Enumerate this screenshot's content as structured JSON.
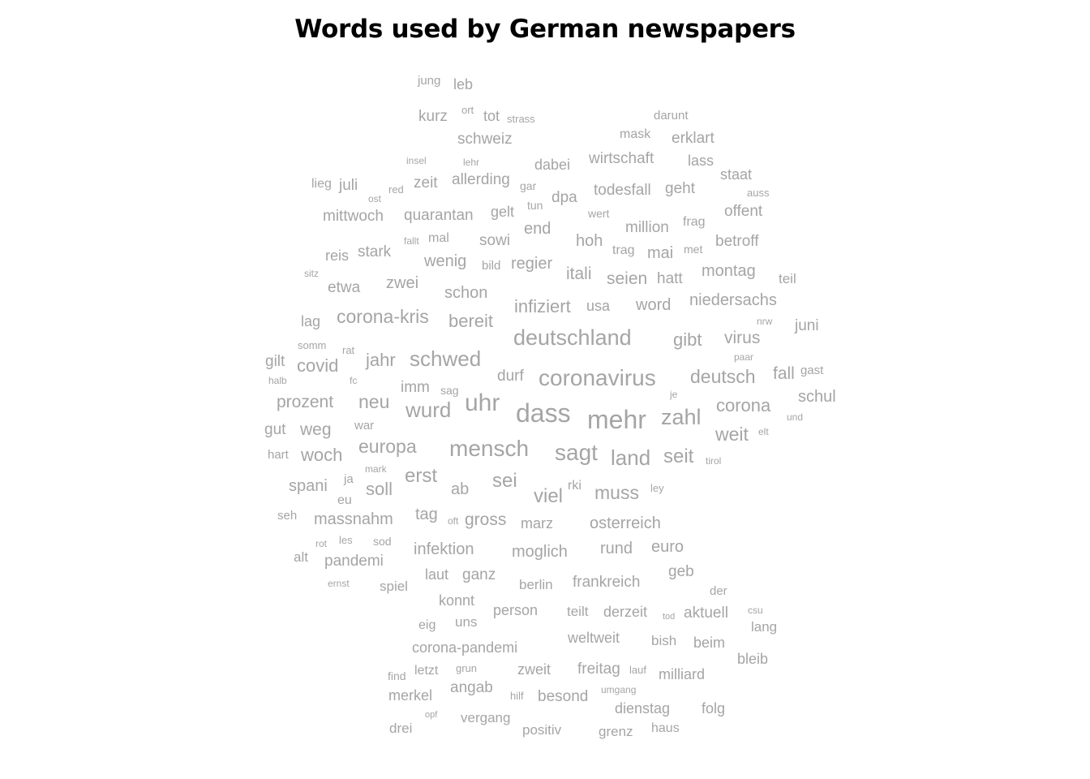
{
  "title": "Words used by German newspapers",
  "word_color": "#a5a5a5",
  "words": [
    {
      "text": "jung",
      "weight": 1
    },
    {
      "text": "leb",
      "weight": 2
    },
    {
      "text": "kurz",
      "weight": 2
    },
    {
      "text": "ort",
      "weight": 1
    },
    {
      "text": "tot",
      "weight": 2
    },
    {
      "text": "strass",
      "weight": 1
    },
    {
      "text": "darunt",
      "weight": 1
    },
    {
      "text": "schweiz",
      "weight": 2
    },
    {
      "text": "mask",
      "weight": 2
    },
    {
      "text": "erklart",
      "weight": 2
    },
    {
      "text": "insel",
      "weight": 1
    },
    {
      "text": "lehr",
      "weight": 1
    },
    {
      "text": "dabei",
      "weight": 2
    },
    {
      "text": "wirtschaft",
      "weight": 2
    },
    {
      "text": "lass",
      "weight": 2
    },
    {
      "text": "staat",
      "weight": 2
    },
    {
      "text": "lieg",
      "weight": 2
    },
    {
      "text": "juli",
      "weight": 2
    },
    {
      "text": "red",
      "weight": 1
    },
    {
      "text": "zeit",
      "weight": 2
    },
    {
      "text": "allerding",
      "weight": 2
    },
    {
      "text": "gar",
      "weight": 1
    },
    {
      "text": "todesfall",
      "weight": 2
    },
    {
      "text": "geht",
      "weight": 2
    },
    {
      "text": "auss",
      "weight": 1
    },
    {
      "text": "ost",
      "weight": 1
    },
    {
      "text": "dpa",
      "weight": 2
    },
    {
      "text": "tun",
      "weight": 1
    },
    {
      "text": "mittwoch",
      "weight": 2
    },
    {
      "text": "quarantan",
      "weight": 2
    },
    {
      "text": "gelt",
      "weight": 2
    },
    {
      "text": "wert",
      "weight": 1
    },
    {
      "text": "offent",
      "weight": 2
    },
    {
      "text": "end",
      "weight": 2
    },
    {
      "text": "million",
      "weight": 2
    },
    {
      "text": "frag",
      "weight": 2
    },
    {
      "text": "fallt",
      "weight": 1
    },
    {
      "text": "mal",
      "weight": 2
    },
    {
      "text": "sowi",
      "weight": 2
    },
    {
      "text": "hoh",
      "weight": 2
    },
    {
      "text": "betroff",
      "weight": 2
    },
    {
      "text": "stark",
      "weight": 2
    },
    {
      "text": "reis",
      "weight": 2
    },
    {
      "text": "trag",
      "weight": 2
    },
    {
      "text": "mai",
      "weight": 2
    },
    {
      "text": "met",
      "weight": 1
    },
    {
      "text": "wenig",
      "weight": 2
    },
    {
      "text": "bild",
      "weight": 1
    },
    {
      "text": "regier",
      "weight": 2
    },
    {
      "text": "itali",
      "weight": 2
    },
    {
      "text": "montag",
      "weight": 2
    },
    {
      "text": "sitz",
      "weight": 1
    },
    {
      "text": "zwei",
      "weight": 2
    },
    {
      "text": "seien",
      "weight": 2
    },
    {
      "text": "hatt",
      "weight": 2
    },
    {
      "text": "teil",
      "weight": 2
    },
    {
      "text": "etwa",
      "weight": 2
    },
    {
      "text": "schon",
      "weight": 2
    },
    {
      "text": "niedersachs",
      "weight": 2
    },
    {
      "text": "infiziert",
      "weight": 3
    },
    {
      "text": "usa",
      "weight": 2
    },
    {
      "text": "word",
      "weight": 2
    },
    {
      "text": "lag",
      "weight": 2
    },
    {
      "text": "corona-kris",
      "weight": 3
    },
    {
      "text": "bereit",
      "weight": 3
    },
    {
      "text": "nrw",
      "weight": 1
    },
    {
      "text": "juni",
      "weight": 2
    },
    {
      "text": "deutschland",
      "weight": 4
    },
    {
      "text": "gibt",
      "weight": 3
    },
    {
      "text": "virus",
      "weight": 3
    },
    {
      "text": "somm",
      "weight": 1
    },
    {
      "text": "rat",
      "weight": 1
    },
    {
      "text": "schwed",
      "weight": 4
    },
    {
      "text": "gilt",
      "weight": 2
    },
    {
      "text": "covid",
      "weight": 3
    },
    {
      "text": "jahr",
      "weight": 3
    },
    {
      "text": "paar",
      "weight": 1
    },
    {
      "text": "durf",
      "weight": 2
    },
    {
      "text": "coronavirus",
      "weight": 4
    },
    {
      "text": "deutsch",
      "weight": 3
    },
    {
      "text": "fall",
      "weight": 3
    },
    {
      "text": "gast",
      "weight": 1
    },
    {
      "text": "halb",
      "weight": 1
    },
    {
      "text": "fc",
      "weight": 1
    },
    {
      "text": "imm",
      "weight": 2
    },
    {
      "text": "sag",
      "weight": 1
    },
    {
      "text": "schul",
      "weight": 3
    },
    {
      "text": "je",
      "weight": 1
    },
    {
      "text": "prozent",
      "weight": 3
    },
    {
      "text": "neu",
      "weight": 3
    },
    {
      "text": "uhr",
      "weight": 5
    },
    {
      "text": "corona",
      "weight": 3
    },
    {
      "text": "wurd",
      "weight": 4
    },
    {
      "text": "dass",
      "weight": 5
    },
    {
      "text": "mehr",
      "weight": 5
    },
    {
      "text": "zahl",
      "weight": 4
    },
    {
      "text": "und",
      "weight": 1
    },
    {
      "text": "gut",
      "weight": 2
    },
    {
      "text": "weg",
      "weight": 3
    },
    {
      "text": "war",
      "weight": 2
    },
    {
      "text": "elt",
      "weight": 1
    },
    {
      "text": "weit",
      "weight": 3
    },
    {
      "text": "europa",
      "weight": 3
    },
    {
      "text": "mensch",
      "weight": 4
    },
    {
      "text": "hart",
      "weight": 2
    },
    {
      "text": "woch",
      "weight": 3
    },
    {
      "text": "sagt",
      "weight": 4
    },
    {
      "text": "land",
      "weight": 4
    },
    {
      "text": "seit",
      "weight": 3
    },
    {
      "text": "tirol",
      "weight": 1
    },
    {
      "text": "mark",
      "weight": 1
    },
    {
      "text": "ja",
      "weight": 1
    },
    {
      "text": "erst",
      "weight": 3
    },
    {
      "text": "spani",
      "weight": 3
    },
    {
      "text": "sei",
      "weight": 3
    },
    {
      "text": "rki",
      "weight": 2
    },
    {
      "text": "ab",
      "weight": 3
    },
    {
      "text": "soll",
      "weight": 3
    },
    {
      "text": "viel",
      "weight": 3
    },
    {
      "text": "muss",
      "weight": 3
    },
    {
      "text": "ley",
      "weight": 1
    },
    {
      "text": "eu",
      "weight": 2
    },
    {
      "text": "seh",
      "weight": 2
    },
    {
      "text": "massnahm",
      "weight": 3
    },
    {
      "text": "tag",
      "weight": 3
    },
    {
      "text": "oft",
      "weight": 1
    },
    {
      "text": "gross",
      "weight": 3
    },
    {
      "text": "marz",
      "weight": 2
    },
    {
      "text": "osterreich",
      "weight": 2
    },
    {
      "text": "rot",
      "weight": 1
    },
    {
      "text": "les",
      "weight": 1
    },
    {
      "text": "sod",
      "weight": 1
    },
    {
      "text": "infektion",
      "weight": 2
    },
    {
      "text": "rund",
      "weight": 2
    },
    {
      "text": "euro",
      "weight": 2
    },
    {
      "text": "alt",
      "weight": 2
    },
    {
      "text": "pandemi",
      "weight": 2
    },
    {
      "text": "moglich",
      "weight": 2
    },
    {
      "text": "laut",
      "weight": 2
    },
    {
      "text": "ganz",
      "weight": 2
    },
    {
      "text": "geb",
      "weight": 2
    },
    {
      "text": "ernst",
      "weight": 1
    },
    {
      "text": "spiel",
      "weight": 2
    },
    {
      "text": "berlin",
      "weight": 2
    },
    {
      "text": "frankreich",
      "weight": 2
    },
    {
      "text": "der",
      "weight": 1
    },
    {
      "text": "konnt",
      "weight": 2
    },
    {
      "text": "person",
      "weight": 2
    },
    {
      "text": "teilt",
      "weight": 2
    },
    {
      "text": "derzeit",
      "weight": 2
    },
    {
      "text": "aktuell",
      "weight": 2
    },
    {
      "text": "csu",
      "weight": 1
    },
    {
      "text": "uns",
      "weight": 2
    },
    {
      "text": "tod",
      "weight": 1
    },
    {
      "text": "eig",
      "weight": 2
    },
    {
      "text": "lang",
      "weight": 2
    },
    {
      "text": "weltweit",
      "weight": 2
    },
    {
      "text": "bish",
      "weight": 2
    },
    {
      "text": "beim",
      "weight": 2
    },
    {
      "text": "corona-pandemi",
      "weight": 2
    },
    {
      "text": "bleib",
      "weight": 2
    },
    {
      "text": "find",
      "weight": 2
    },
    {
      "text": "letzt",
      "weight": 2
    },
    {
      "text": "grun",
      "weight": 1
    },
    {
      "text": "zweit",
      "weight": 2
    },
    {
      "text": "freitag",
      "weight": 2
    },
    {
      "text": "lauf",
      "weight": 1
    },
    {
      "text": "milliard",
      "weight": 2
    },
    {
      "text": "angab",
      "weight": 2
    },
    {
      "text": "merkel",
      "weight": 2
    },
    {
      "text": "hilf",
      "weight": 1
    },
    {
      "text": "besond",
      "weight": 2
    },
    {
      "text": "umgang",
      "weight": 1
    },
    {
      "text": "dienstag",
      "weight": 2
    },
    {
      "text": "folg",
      "weight": 2
    },
    {
      "text": "opf",
      "weight": 1
    },
    {
      "text": "vergang",
      "weight": 2
    },
    {
      "text": "drei",
      "weight": 2
    },
    {
      "text": "positiv",
      "weight": 2
    },
    {
      "text": "haus",
      "weight": 2
    },
    {
      "text": "grenz",
      "weight": 2
    }
  ]
}
